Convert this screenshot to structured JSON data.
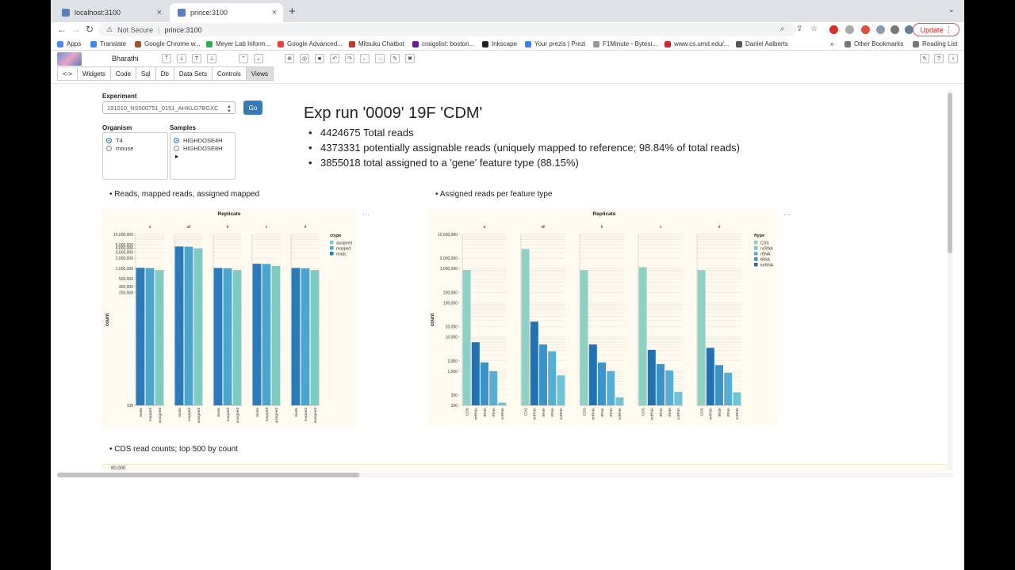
{
  "browser": {
    "tabs": [
      {
        "title": "localhost:3100"
      },
      {
        "title": "prince:3100"
      }
    ],
    "security": "Not Secure",
    "url": "prince:3100",
    "update_label": "Update",
    "bookmarks": [
      "Apps",
      "Translate",
      "Google Chrome w...",
      "Meyer Lab Inform...",
      "Google Advanced...",
      "Mitsuku Chatbot",
      "craigslist: boston...",
      "Inkscape",
      "Your prezis | Prezi",
      "F1Minute - Bytesi...",
      "www.cs.umd.edu/...",
      "Daniel Aalberts"
    ],
    "more_bookmarks": "»",
    "other_bookmarks": "Other Bookmarks",
    "reading_list": "Reading List"
  },
  "app": {
    "name": "Bharathi",
    "tabs": [
      "<->",
      "Widgets",
      "Code",
      "Sql",
      "Db",
      "Data Sets",
      "Controls",
      "Views"
    ],
    "active_tab": "Views"
  },
  "form": {
    "experiment_label": "Experiment",
    "experiment_value": "191010_NS500751_0151_AHKLG7BGXC",
    "go_label": "Go",
    "organism_label": "Organism",
    "organisms": [
      "T4",
      "mouse"
    ],
    "samples_label": "Samples",
    "samples": [
      "HIGHDOSE4H",
      "HIGHDOSE8H"
    ]
  },
  "summary": {
    "title": "Exp run '0009' 19F 'CDM'",
    "lines": [
      "4424675 Total reads",
      "4373331 potentially assignable reads (uniquely mapped to reference; 98.84% of total reads)",
      "3855018 total assigned to a 'gene' feature type (88.15%)"
    ]
  },
  "sections": {
    "left": "Reads, mapped reads, assigned mapped",
    "right": "Assigned reads per feature type",
    "bottom": "CDS read counts; top 500 by count"
  },
  "chart_data": [
    {
      "type": "bar",
      "title": "Replicate",
      "ylabel": "count",
      "yscale": "log",
      "ylim": [
        100,
        10000000
      ],
      "y_ticks": [
        "100",
        "200,000",
        "300,000",
        "500,000",
        "1,000,000",
        "2,000,000",
        "3,000,000",
        "4,000,000",
        "5,000,000",
        "10,000,000"
      ],
      "legend_title": "ctype",
      "legend": [
        "assigned",
        "mapped",
        "reads"
      ],
      "colors": {
        "reads": "#2b7bba",
        "mapped": "#4aa5cf",
        "assigned": "#7ecbc4"
      },
      "facets": [
        {
          "name": "a",
          "categories": [
            "reads",
            "mapped",
            "assigned"
          ],
          "values": [
            1050000,
            1030000,
            900000
          ]
        },
        {
          "name": "all",
          "categories": [
            "reads",
            "mapped",
            "assigned"
          ],
          "values": [
            4424675,
            4373331,
            3855018
          ]
        },
        {
          "name": "b",
          "categories": [
            "reads",
            "mapped",
            "assigned"
          ],
          "values": [
            1040000,
            1020000,
            900000
          ]
        },
        {
          "name": "c",
          "categories": [
            "reads",
            "mapped",
            "assigned"
          ],
          "values": [
            1380000,
            1360000,
            1200000
          ]
        },
        {
          "name": "d",
          "categories": [
            "reads",
            "mapped",
            "assigned"
          ],
          "values": [
            1040000,
            1020000,
            900000
          ]
        }
      ]
    },
    {
      "type": "bar",
      "title": "Replicate",
      "ylabel": "count",
      "yscale": "log",
      "ylim": [
        100,
        10000000
      ],
      "y_ticks": [
        "100",
        "200",
        "1,000",
        "2,000",
        "10,000",
        "20,000",
        "100,000",
        "200,000",
        "1,000,000",
        "2,000,000",
        "10,000,000"
      ],
      "legend_title": "ftype",
      "legend": [
        "CDS",
        "ncRNA",
        "rRNA",
        "tRNA",
        "tmRNA"
      ],
      "colors": {
        "CDS": "#8fd0c4",
        "tmRNA": "#2171b5",
        "tRNA": "#3b93cc",
        "rRNA": "#56aed6",
        "ncRNA": "#6fc3d6"
      },
      "facets": [
        {
          "name": "a",
          "categories": [
            "CDS",
            "tmRNA",
            "tRNA",
            "rRNA",
            "ncRNA"
          ],
          "values": [
            900000,
            7000,
            1800,
            1000,
            120
          ]
        },
        {
          "name": "all",
          "categories": [
            "CDS",
            "tmRNA",
            "tRNA",
            "rRNA",
            "ncRNA"
          ],
          "values": [
            3700000,
            28000,
            6000,
            3800,
            750
          ]
        },
        {
          "name": "b",
          "categories": [
            "CDS",
            "tmRNA",
            "tRNA",
            "rRNA",
            "ncRNA"
          ],
          "values": [
            900000,
            6000,
            1800,
            1000,
            170
          ]
        },
        {
          "name": "c",
          "categories": [
            "CDS",
            "tmRNA",
            "tRNA",
            "rRNA",
            "ncRNA"
          ],
          "values": [
            1100000,
            4200,
            1600,
            1050,
            250
          ]
        },
        {
          "name": "d",
          "categories": [
            "CDS",
            "tmRNA",
            "tRNA",
            "rRNA",
            "ncRNA"
          ],
          "values": [
            900000,
            4800,
            1500,
            900,
            240
          ]
        }
      ]
    },
    {
      "type": "bar",
      "title": "",
      "y_ticks": [
        "80,000"
      ]
    }
  ]
}
